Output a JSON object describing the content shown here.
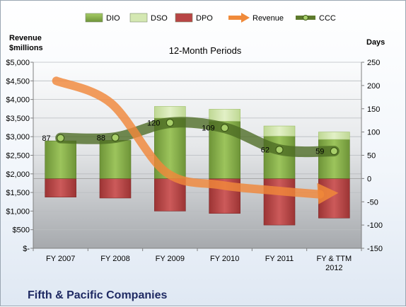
{
  "chart_data": {
    "type": "bar",
    "title": "12-Month Periods",
    "company": "Fifth & Pacific Companies",
    "y_left_label": [
      "Revenue",
      "$millions"
    ],
    "y_right_label": "Days",
    "y_left_ticks": [
      "$-",
      "$500",
      "$1,000",
      "$1,500",
      "$2,000",
      "$2,500",
      "$3,000",
      "$3,500",
      "$4,000",
      "$4,500",
      "$5,000"
    ],
    "y_right_ticks": [
      "-150",
      "-100",
      "-50",
      "0",
      "50",
      "100",
      "150",
      "200",
      "250"
    ],
    "ylim_left": [
      0,
      5000
    ],
    "ylim_right": [
      -150,
      250
    ],
    "categories": [
      [
        "FY 2007"
      ],
      [
        "FY 2008"
      ],
      [
        "FY 2009"
      ],
      [
        "FY 2010"
      ],
      [
        "FY 2011"
      ],
      [
        "FY & TTM",
        "2012"
      ]
    ],
    "legend": [
      {
        "name": "DIO",
        "kind": "bar",
        "color": "#86b04a"
      },
      {
        "name": "DSO",
        "kind": "bar",
        "color": "#d4e8b2"
      },
      {
        "name": "DPO",
        "kind": "bar",
        "color": "#b84545"
      },
      {
        "name": "Revenue",
        "kind": "arrow",
        "color": "#f08a3a"
      },
      {
        "name": "CCC",
        "kind": "line",
        "color": "#5d7a2c"
      }
    ],
    "series": [
      {
        "name": "DIO",
        "axis": "right",
        "values": [
          81,
          82,
          130,
          123,
          91,
          84
        ]
      },
      {
        "name": "DSO",
        "axis": "right",
        "values": [
          0,
          0,
          25,
          26,
          22,
          16
        ]
      },
      {
        "name": "DPO",
        "axis": "right",
        "values": [
          -40,
          -42,
          -70,
          -75,
          -100,
          -85
        ]
      },
      {
        "name": "Revenue",
        "axis": "left",
        "values": [
          4500,
          3900,
          2050,
          1700,
          1550,
          1450
        ]
      },
      {
        "name": "CCC",
        "axis": "right",
        "values": [
          87,
          88,
          120,
          109,
          62,
          59
        ]
      }
    ],
    "ccc_labels": [
      "87",
      "88",
      "120",
      "109",
      "62",
      "59"
    ]
  }
}
